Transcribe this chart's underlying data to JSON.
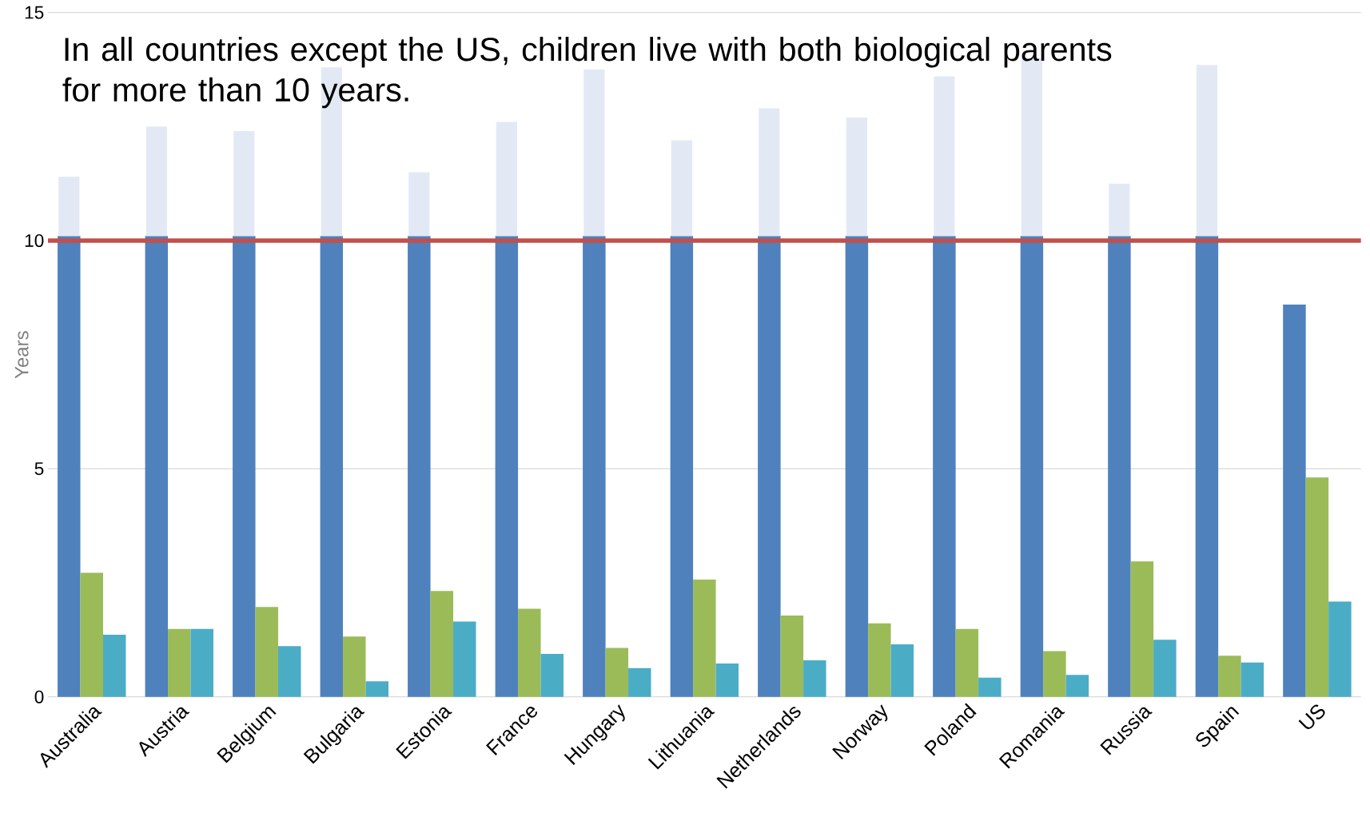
{
  "chart_data": {
    "type": "bar",
    "title": "In all countries except the US, children live with both biological parents for more than 10 years.",
    "ylabel": "Years",
    "categories": [
      "Australia",
      "Austria",
      "Belgium",
      "Bulgaria",
      "Estonia",
      "France",
      "Hungary",
      "Lithuania",
      "Netherlands",
      "Norway",
      "Poland",
      "Romania",
      "Russia",
      "Spain",
      "US"
    ],
    "series": [
      {
        "color": "#4f81bd",
        "values": [
          10.1,
          10.1,
          10.1,
          10.1,
          10.1,
          10.1,
          10.1,
          10.1,
          10.1,
          10.1,
          10.1,
          10.1,
          10.1,
          10.1,
          8.6
        ]
      },
      {
        "color": "#e3e9f4",
        "base": [
          10.1,
          10.1,
          10.1,
          10.1,
          10.1,
          10.1,
          10.1,
          10.1,
          10.1,
          10.1,
          10.1,
          10.1,
          10.1,
          10.1,
          null
        ],
        "values": [
          1.3,
          2.4,
          2.3,
          3.7,
          1.4,
          2.5,
          3.65,
          2.1,
          2.8,
          2.6,
          3.5,
          3.9,
          1.15,
          3.75,
          null
        ]
      },
      {
        "color": "#9bbb59",
        "values": [
          2.72,
          1.49,
          1.97,
          1.32,
          2.32,
          1.93,
          1.07,
          2.57,
          1.78,
          1.61,
          1.49,
          1.0,
          2.97,
          0.9,
          4.81
        ]
      },
      {
        "color": "#4bacc6",
        "values": [
          1.36,
          1.49,
          1.11,
          0.34,
          1.65,
          0.94,
          0.63,
          0.73,
          0.8,
          1.15,
          0.42,
          0.48,
          1.25,
          0.75,
          2.09
        ]
      }
    ],
    "ylim": [
      0,
      15
    ],
    "yticks": [
      0,
      5,
      10,
      15
    ],
    "grid": "y",
    "ref_lines": [
      {
        "axis": "y",
        "value": 10,
        "color": "#c0504d"
      }
    ]
  }
}
